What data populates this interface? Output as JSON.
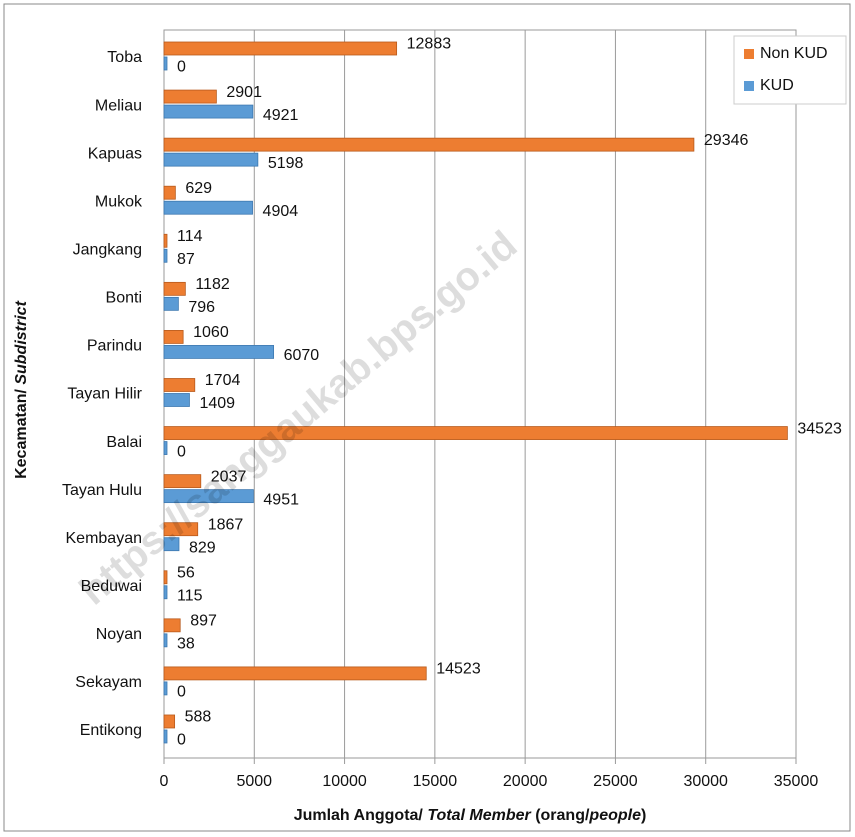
{
  "chart_data": {
    "type": "hbar",
    "categories": [
      "Toba",
      "Meliau",
      "Kapuas",
      "Mukok",
      "Jangkang",
      "Bonti",
      "Parindu",
      "Tayan Hilir",
      "Balai",
      "Tayan Hulu",
      "Kembayan",
      "Beduwai",
      "Noyan",
      "Sekayam",
      "Entikong"
    ],
    "series": [
      {
        "name": "Non KUD",
        "color": "#ed7d31",
        "values": [
          12883,
          2901,
          29346,
          629,
          114,
          1182,
          1060,
          1704,
          34523,
          2037,
          1867,
          56,
          897,
          14523,
          588
        ]
      },
      {
        "name": "KUD",
        "color": "#5b9bd5",
        "values": [
          0,
          4921,
          5198,
          4904,
          87,
          796,
          6070,
          1409,
          0,
          4951,
          829,
          115,
          38,
          0,
          0
        ]
      }
    ],
    "xlim": [
      0,
      35000
    ],
    "xticks": [
      0,
      5000,
      10000,
      15000,
      20000,
      25000,
      30000,
      35000
    ],
    "xlabel": [
      "Jumlah Anggota/ ",
      "Total Member",
      " (orang/",
      "people",
      ")"
    ],
    "ylabel": [
      "Kecamatan/ ",
      "Subdistrict"
    ],
    "grid": true,
    "legend": "top-right",
    "watermark": "https://sanggaukab.bps.go.id"
  }
}
